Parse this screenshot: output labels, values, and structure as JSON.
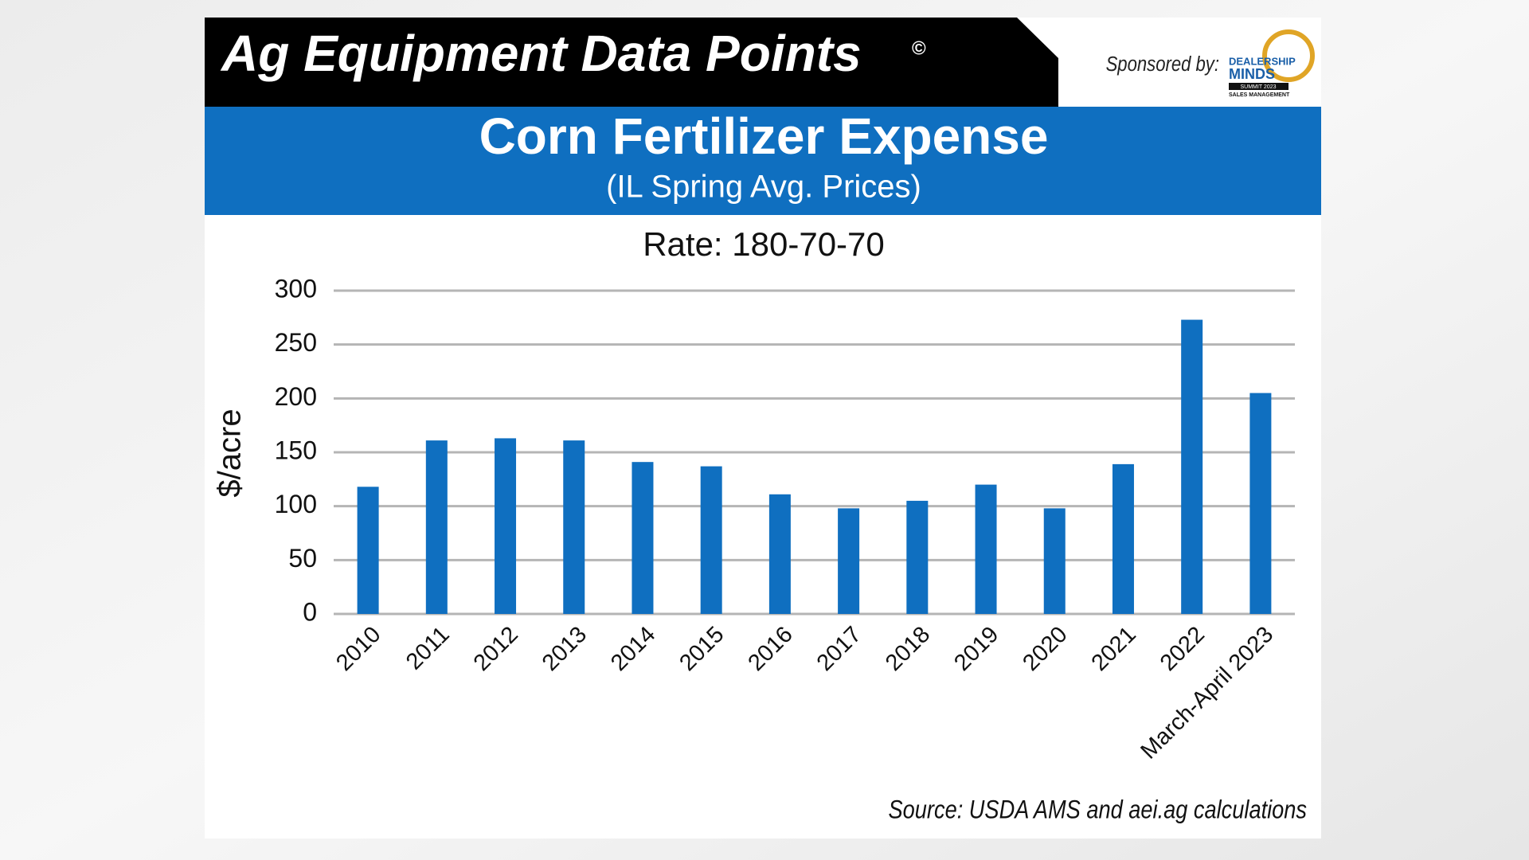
{
  "header": {
    "title": "Ag Equipment Data Points",
    "mark": "©",
    "sponsor_label": "Sponsored by:",
    "logo": {
      "line1": "DEALERSHIP",
      "line2": "MINDS",
      "line3": "SUMMIT 2023",
      "line4": "SALES MANAGEMENT"
    }
  },
  "chart_data": {
    "type": "bar",
    "title": "Corn Fertilizer Expense",
    "subtitle": "(IL Spring Avg. Prices)",
    "annotation": "Rate: 180-70-70",
    "y_label": "$/acre",
    "source": "Source: USDA AMS and aei.ag calculations",
    "categories": [
      "2010",
      "2011",
      "2012",
      "2013",
      "2014",
      "2015",
      "2016",
      "2017",
      "2018",
      "2019",
      "2020",
      "2021",
      "2022",
      "March-April 2023"
    ],
    "values": [
      118,
      161,
      163,
      161,
      141,
      137,
      111,
      98,
      105,
      120,
      98,
      139,
      273,
      205
    ],
    "color": "#0f6fc0",
    "ylim": [
      0,
      300
    ],
    "yticks": [
      0,
      50,
      100,
      150,
      200,
      250,
      300
    ],
    "grid": true
  }
}
